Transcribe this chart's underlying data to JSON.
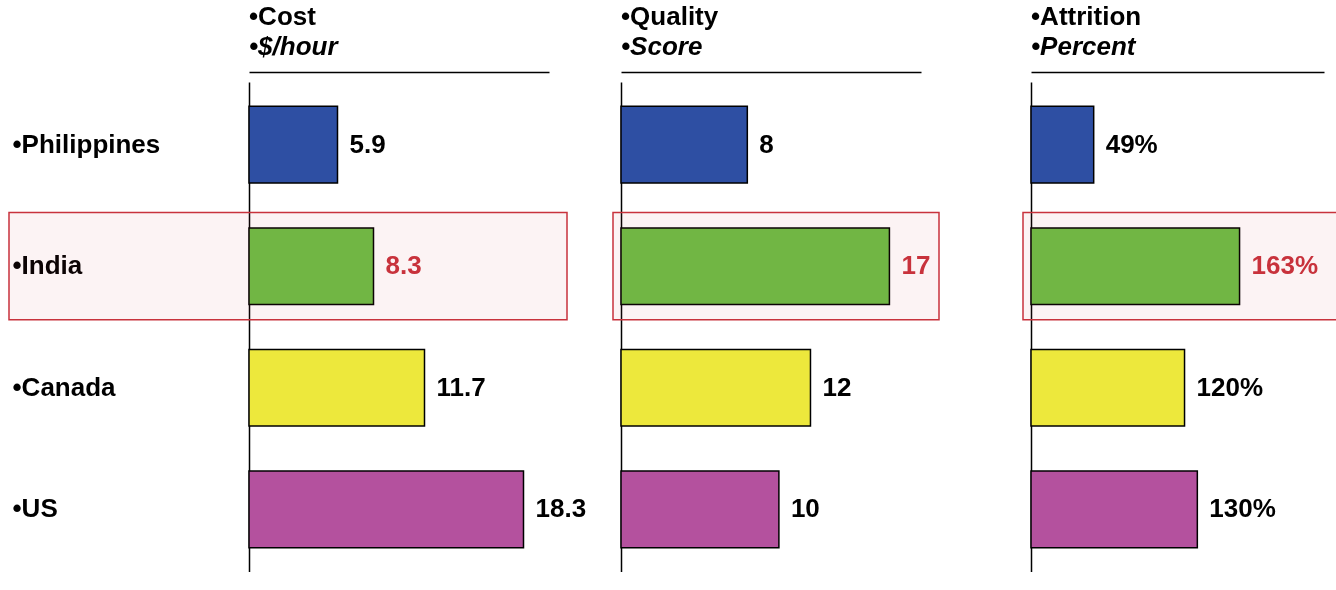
{
  "chart_data": [
    {
      "type": "bar",
      "orientation": "horizontal",
      "title": "•Cost",
      "subtitle": "•$/hour",
      "categories": [
        "•Philippines",
        "•India",
        "•Canada",
        "•US"
      ],
      "values": [
        5.9,
        8.3,
        11.7,
        18.3
      ],
      "colors": [
        "#2e4fa3",
        "#6cbf45",
        "#ede83c",
        "#b4519e"
      ],
      "data_labels": true,
      "xlim": [
        0,
        20
      ],
      "tick_labels": "y",
      "bands": [
        {
          "axis": "y",
          "from": "•India",
          "to": "•India",
          "color": "#c8323c"
        }
      ]
    },
    {
      "type": "bar",
      "orientation": "horizontal",
      "title": "•Quality",
      "subtitle": "•Score",
      "categories": [
        "•Philippines",
        "•India",
        "•Canada",
        "•US"
      ],
      "values": [
        8,
        17,
        12,
        10
      ],
      "colors": [
        "#2e4fa3",
        "#6cbf45",
        "#ede83c",
        "#b4519e"
      ],
      "data_labels": true,
      "xlim": [
        0,
        19
      ],
      "tick_labels": false,
      "bands": [
        {
          "axis": "y",
          "from": "•India",
          "to": "•India",
          "color": "#c8323c"
        }
      ]
    },
    {
      "type": "bar",
      "orientation": "horizontal",
      "title": "•Attrition",
      "subtitle": "•Percent",
      "categories": [
        "•Philippines",
        "•India",
        "•Canada",
        "•US"
      ],
      "values": [
        49,
        163,
        120,
        130
      ],
      "value_labels": [
        "49%",
        "163%",
        "120%",
        "130%"
      ],
      "colors": [
        "#2e4fa3",
        "#6cbf45",
        "#ede83c",
        "#b4519e"
      ],
      "xlim": [
        0,
        229
      ],
      "tick_labels": false,
      "bands": [
        {
          "axis": "y",
          "from": "•India",
          "to": "•India",
          "color": "#c8323c"
        }
      ]
    }
  ]
}
